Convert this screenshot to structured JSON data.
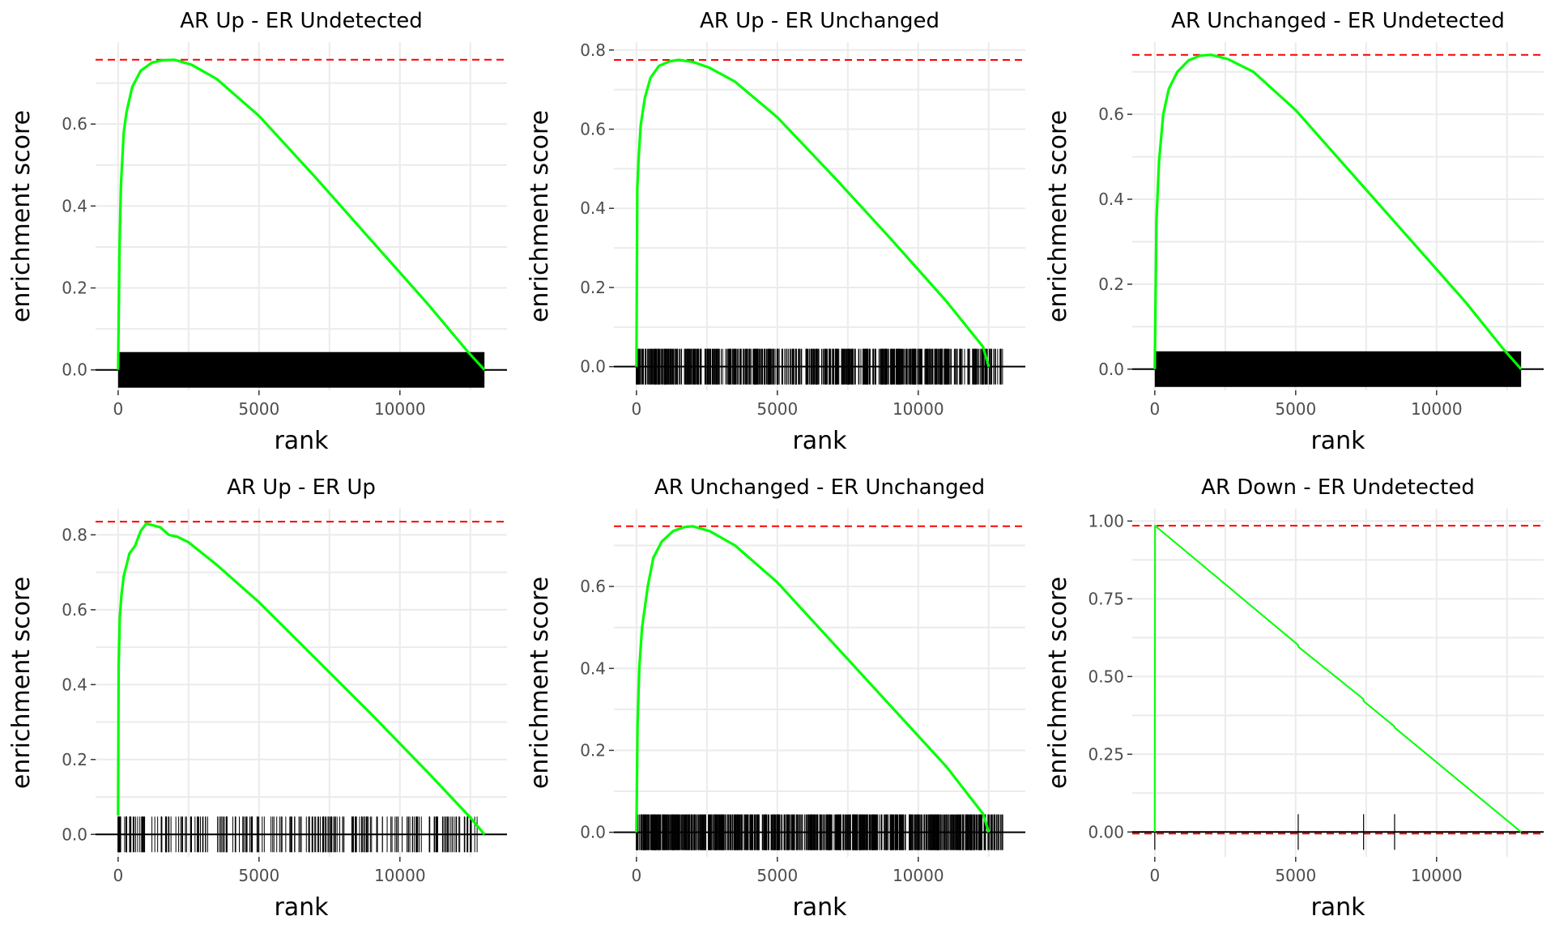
{
  "colors": {
    "curve": "#00ff00",
    "max_line": "#ff0000",
    "min_line": "#ff0000",
    "baseline": "#000000",
    "rug": "#000000",
    "grid": "#ebebeb"
  },
  "chart_data": [
    {
      "type": "line",
      "title": "AR Up - ER Undetected",
      "xlabel": "rank",
      "ylabel": "enrichment score",
      "xlim": [
        -800,
        13800
      ],
      "ylim": [
        -0.05,
        0.8
      ],
      "xticks": [
        0,
        5000,
        10000
      ],
      "xtick_labels": [
        "0",
        "5000",
        "10000"
      ],
      "yticks": [
        0.0,
        0.2,
        0.4,
        0.6
      ],
      "ytick_labels": [
        "0.0",
        "0.2",
        "0.4",
        "0.6"
      ],
      "es_max": 0.757,
      "es_min": null,
      "series": [
        {
          "x": [
            0,
            50,
            100,
            200,
            300,
            500,
            800,
            1200,
            1600,
            2000,
            2600,
            3500,
            5000,
            7000,
            9000,
            11000,
            12400,
            13000
          ],
          "y": [
            0.0,
            0.3,
            0.45,
            0.58,
            0.63,
            0.69,
            0.73,
            0.75,
            0.756,
            0.757,
            0.745,
            0.71,
            0.62,
            0.47,
            0.315,
            0.16,
            0.045,
            0.0
          ]
        }
      ],
      "rug": {
        "dense": true,
        "end": 13000
      }
    },
    {
      "type": "line",
      "title": "AR Up - ER Unchanged",
      "xlabel": "rank",
      "ylabel": "enrichment score",
      "xlim": [
        -800,
        13800
      ],
      "ylim": [
        -0.06,
        0.82
      ],
      "xticks": [
        0,
        5000,
        10000
      ],
      "xtick_labels": [
        "0",
        "5000",
        "10000"
      ],
      "yticks": [
        0.0,
        0.2,
        0.4,
        0.6,
        0.8
      ],
      "ytick_labels": [
        "0.0",
        "0.2",
        "0.4",
        "0.6",
        "0.8"
      ],
      "es_max": 0.775,
      "es_min": null,
      "series": [
        {
          "x": [
            0,
            30,
            80,
            150,
            300,
            500,
            800,
            1200,
            1500,
            2000,
            2600,
            3500,
            5000,
            7000,
            9000,
            11000,
            12300,
            12500
          ],
          "y": [
            0.0,
            0.45,
            0.53,
            0.61,
            0.68,
            0.73,
            0.76,
            0.772,
            0.775,
            0.77,
            0.755,
            0.72,
            0.63,
            0.48,
            0.325,
            0.165,
            0.05,
            0.0
          ]
        }
      ],
      "rug": {
        "dense": false,
        "count": 650,
        "end": 13000
      }
    },
    {
      "type": "line",
      "title": "AR Unchanged - ER Undetected",
      "xlabel": "rank",
      "ylabel": "enrichment score",
      "xlim": [
        -800,
        13800
      ],
      "ylim": [
        -0.05,
        0.77
      ],
      "xticks": [
        0,
        5000,
        10000
      ],
      "xtick_labels": [
        "0",
        "5000",
        "10000"
      ],
      "yticks": [
        0.0,
        0.2,
        0.4,
        0.6
      ],
      "ytick_labels": [
        "0.0",
        "0.2",
        "0.4",
        "0.6"
      ],
      "es_max": 0.74,
      "es_min": null,
      "series": [
        {
          "x": [
            0,
            60,
            150,
            300,
            500,
            800,
            1200,
            1600,
            2000,
            2600,
            3500,
            5000,
            7000,
            9000,
            11000,
            12400,
            13000
          ],
          "y": [
            0.0,
            0.35,
            0.49,
            0.6,
            0.66,
            0.7,
            0.727,
            0.738,
            0.74,
            0.73,
            0.7,
            0.61,
            0.46,
            0.31,
            0.16,
            0.045,
            0.0
          ]
        }
      ],
      "rug": {
        "dense": true,
        "end": 13000
      }
    },
    {
      "type": "line",
      "title": "AR Up - ER Up",
      "xlabel": "rank",
      "ylabel": "enrichment score",
      "xlim": [
        -800,
        13800
      ],
      "ylim": [
        -0.06,
        0.87
      ],
      "xticks": [
        0,
        5000,
        10000
      ],
      "xtick_labels": [
        "0",
        "5000",
        "10000"
      ],
      "yticks": [
        0.0,
        0.2,
        0.4,
        0.6,
        0.8
      ],
      "ytick_labels": [
        "0.0",
        "0.2",
        "0.4",
        "0.6",
        "0.8"
      ],
      "es_max": 0.835,
      "es_min": null,
      "series": [
        {
          "x": [
            0,
            20,
            60,
            120,
            200,
            300,
            400,
            600,
            800,
            1000,
            1200,
            1500,
            1800,
            2100,
            2500,
            3000,
            3500,
            5000,
            7000,
            9000,
            11000,
            12500,
            13000
          ],
          "y": [
            0.05,
            0.45,
            0.58,
            0.64,
            0.69,
            0.72,
            0.75,
            0.77,
            0.81,
            0.83,
            0.826,
            0.82,
            0.8,
            0.795,
            0.78,
            0.75,
            0.72,
            0.62,
            0.47,
            0.32,
            0.165,
            0.045,
            0.0
          ]
        }
      ],
      "rug": {
        "dense": false,
        "count": 230,
        "end": 13000
      }
    },
    {
      "type": "line",
      "title": "AR Unchanged - ER Unchanged",
      "xlabel": "rank",
      "ylabel": "enrichment score",
      "xlim": [
        -800,
        13800
      ],
      "ylim": [
        -0.06,
        0.79
      ],
      "xticks": [
        0,
        5000,
        10000
      ],
      "xtick_labels": [
        "0",
        "5000",
        "10000"
      ],
      "yticks": [
        0.0,
        0.2,
        0.4,
        0.6
      ],
      "ytick_labels": [
        "0.0",
        "0.2",
        "0.4",
        "0.6"
      ],
      "es_max": 0.747,
      "es_min": null,
      "series": [
        {
          "x": [
            0,
            40,
            100,
            200,
            400,
            600,
            900,
            1300,
            1700,
            2000,
            2600,
            3500,
            5000,
            7000,
            9000,
            11000,
            12300,
            12500
          ],
          "y": [
            0.0,
            0.26,
            0.4,
            0.5,
            0.6,
            0.67,
            0.71,
            0.735,
            0.745,
            0.747,
            0.735,
            0.7,
            0.61,
            0.46,
            0.31,
            0.16,
            0.045,
            0.0
          ]
        }
      ],
      "rug": {
        "dense": false,
        "count": 800,
        "end": 13000
      }
    },
    {
      "type": "line",
      "title": "AR Down - ER Undetected",
      "xlabel": "rank",
      "ylabel": "enrichment score",
      "xlim": [
        -800,
        13800
      ],
      "ylim": [
        -0.08,
        1.04
      ],
      "xticks": [
        0,
        5000,
        10000
      ],
      "xtick_labels": [
        "0",
        "5000",
        "10000"
      ],
      "yticks": [
        0.0,
        0.25,
        0.5,
        0.75,
        1.0
      ],
      "ytick_labels": [
        "0.00",
        "0.25",
        "0.50",
        "0.75",
        "1.00"
      ],
      "es_max": 0.985,
      "es_min": -0.005,
      "series": [
        {
          "x": [
            0,
            10,
            5080,
            5100,
            7400,
            7420,
            8500,
            8520,
            13000
          ],
          "y": [
            0.0,
            0.985,
            0.602,
            0.595,
            0.428,
            0.42,
            0.34,
            0.335,
            0.0
          ]
        }
      ],
      "rug": {
        "dense": false,
        "positions": [
          0,
          5090,
          7410,
          8510
        ],
        "end": 13000
      }
    }
  ]
}
